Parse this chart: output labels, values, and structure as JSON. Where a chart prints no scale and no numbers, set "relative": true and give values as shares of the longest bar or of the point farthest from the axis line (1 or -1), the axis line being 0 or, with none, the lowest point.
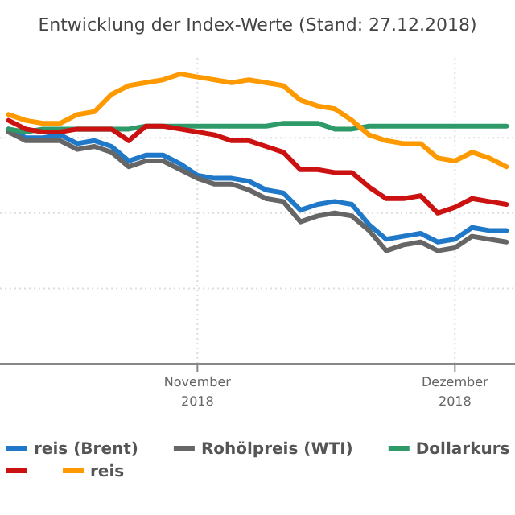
{
  "chart_data": {
    "type": "line",
    "title": "Entwicklung der Index-Werte (Stand: 27.12.2018)",
    "relative": true,
    "x": [
      "2018-10-10",
      "2018-10-12",
      "2018-10-14",
      "2018-10-16",
      "2018-10-18",
      "2018-10-20",
      "2018-10-22",
      "2018-10-24",
      "2018-10-26",
      "2018-10-28",
      "2018-10-30",
      "2018-11-01",
      "2018-11-03",
      "2018-11-05",
      "2018-11-07",
      "2018-11-09",
      "2018-11-11",
      "2018-11-13",
      "2018-11-15",
      "2018-11-17",
      "2018-11-19",
      "2018-11-21",
      "2018-11-23",
      "2018-11-25",
      "2018-11-27",
      "2018-11-29",
      "2018-12-01",
      "2018-12-03",
      "2018-12-05",
      "2018-12-07"
    ],
    "xlim": [
      "2018-10-09",
      "2018-12-08"
    ],
    "xticks": [
      {
        "value": "2018-11-01",
        "label": "November\n2018"
      },
      {
        "value": "2018-12-01",
        "label": "Dezember\n2018"
      }
    ],
    "series": [
      {
        "name": "reis (Brent)",
        "color": "#1f78c8",
        "values": [
          0.81,
          0.78,
          0.78,
          0.79,
          0.76,
          0.77,
          0.75,
          0.7,
          0.72,
          0.72,
          0.69,
          0.65,
          0.64,
          0.64,
          0.63,
          0.6,
          0.59,
          0.53,
          0.55,
          0.56,
          0.55,
          0.48,
          0.43,
          0.44,
          0.45,
          0.42,
          0.43,
          0.47,
          0.46,
          0.46
        ]
      },
      {
        "name": "Rohölpreis (WTI)",
        "color": "#666666",
        "values": [
          0.8,
          0.77,
          0.77,
          0.77,
          0.74,
          0.75,
          0.73,
          0.68,
          0.7,
          0.7,
          0.67,
          0.64,
          0.62,
          0.62,
          0.6,
          0.57,
          0.56,
          0.49,
          0.51,
          0.52,
          0.51,
          0.46,
          0.39,
          0.41,
          0.42,
          0.39,
          0.4,
          0.44,
          0.43,
          0.42
        ]
      },
      {
        "name": "Dollarkurs",
        "color": "#2e9a6a",
        "values": [
          0.81,
          0.8,
          0.81,
          0.81,
          0.81,
          0.81,
          0.81,
          0.81,
          0.82,
          0.82,
          0.82,
          0.82,
          0.82,
          0.82,
          0.82,
          0.82,
          0.83,
          0.83,
          0.83,
          0.81,
          0.81,
          0.82,
          0.82,
          0.82,
          0.82,
          0.82,
          0.82,
          0.82,
          0.82,
          0.82
        ]
      },
      {
        "color": "#cc1111",
        "values": [
          0.84,
          0.81,
          0.8,
          0.8,
          0.81,
          0.81,
          0.81,
          0.77,
          0.82,
          0.82,
          0.81,
          0.8,
          0.79,
          0.77,
          0.77,
          0.75,
          0.73,
          0.67,
          0.67,
          0.66,
          0.66,
          0.61,
          0.57,
          0.57,
          0.58,
          0.52,
          0.54,
          0.57,
          0.56,
          0.55
        ]
      },
      {
        "name": "reis",
        "color": "#ff9900",
        "values": [
          0.86,
          0.84,
          0.83,
          0.83,
          0.86,
          0.87,
          0.93,
          0.96,
          0.97,
          0.98,
          1,
          0.99,
          0.98,
          0.97,
          0.98,
          0.97,
          0.96,
          0.91,
          0.89,
          0.88,
          0.84,
          0.79,
          0.77,
          0.76,
          0.76,
          0.71,
          0.7,
          0.73,
          0.71,
          0.68
        ]
      }
    ],
    "grid": true,
    "legend": "bottom",
    "line_style": "solid",
    "marker": "none"
  }
}
